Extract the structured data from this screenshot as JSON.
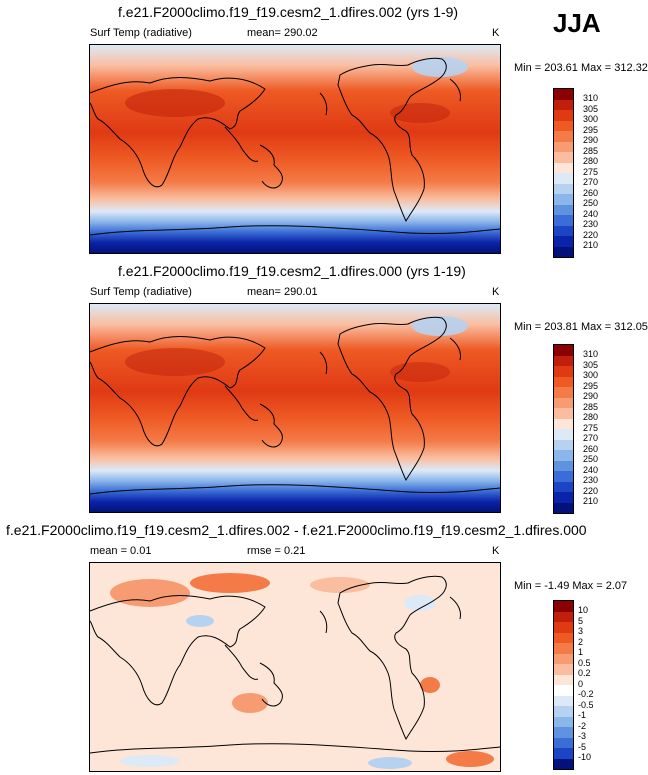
{
  "season": "JJA",
  "panels": [
    {
      "title": "f.e21.F2000climo.f19_f19.cesm2_1.dfires.002 (yrs 1-9)",
      "left_label": "Surf Temp (radiative)",
      "center_label": "mean= 290.02",
      "units": "K",
      "minmax": "Min = 203.61 Max = 312.32",
      "levels": [
        "310",
        "305",
        "300",
        "295",
        "290",
        "285",
        "280",
        "275",
        "270",
        "260",
        "250",
        "240",
        "230",
        "220",
        "210"
      ],
      "colors": [
        "#8b0000",
        "#c0200b",
        "#e03a14",
        "#ee5a24",
        "#f47b48",
        "#f79b73",
        "#fabd9f",
        "#fde6d8",
        "#dce9f7",
        "#b6d2f0",
        "#8bb6ea",
        "#5f93e0",
        "#3a6dd5",
        "#1b45c4",
        "#0b23a8",
        "#03127a"
      ]
    },
    {
      "title": "f.e21.F2000climo.f19_f19.cesm2_1.dfires.000 (yrs 1-19)",
      "left_label": "Surf Temp (radiative)",
      "center_label": "mean= 290.01",
      "units": "K",
      "minmax": "Min = 203.81 Max = 312.05",
      "levels": [
        "310",
        "305",
        "300",
        "295",
        "290",
        "285",
        "280",
        "275",
        "270",
        "260",
        "250",
        "240",
        "230",
        "220",
        "210"
      ],
      "colors": [
        "#8b0000",
        "#c0200b",
        "#e03a14",
        "#ee5a24",
        "#f47b48",
        "#f79b73",
        "#fabd9f",
        "#fde6d8",
        "#dce9f7",
        "#b6d2f0",
        "#8bb6ea",
        "#5f93e0",
        "#3a6dd5",
        "#1b45c4",
        "#0b23a8",
        "#03127a"
      ]
    },
    {
      "title": "f.e21.F2000climo.f19_f19.cesm2_1.dfires.002 - f.e21.F2000climo.f19_f19.cesm2_1.dfires.000",
      "left_label": "mean =  0.01",
      "center_label": "rmse =  0.21",
      "units": "K",
      "minmax": "Min =  -1.49 Max =  2.07",
      "levels": [
        "10",
        "5",
        "3",
        "2",
        "1",
        "0.5",
        "0.2",
        "0",
        "-0.2",
        "-0.5",
        "-1",
        "-2",
        "-3",
        "-5",
        "-10"
      ],
      "colors": [
        "#8b0000",
        "#c0200b",
        "#e03a14",
        "#ee5a24",
        "#f47b48",
        "#f79b73",
        "#fabd9f",
        "#fde6d8",
        "#ffffff",
        "#dce9f7",
        "#b6d2f0",
        "#8bb6ea",
        "#5f93e0",
        "#3a6dd5",
        "#1b45c4",
        "#03127a"
      ]
    }
  ],
  "chart_data": [
    {
      "type": "heatmap",
      "title": "f.e21.F2000climo.f19_f19.cesm2_1.dfires.002 (yrs 1-9)",
      "variable": "Surf Temp (radiative)",
      "units": "K",
      "mean": 290.02,
      "min": 203.61,
      "max": 312.32,
      "colorbar_levels": [
        310,
        305,
        300,
        295,
        290,
        285,
        280,
        275,
        270,
        260,
        250,
        240,
        230,
        220,
        210
      ]
    },
    {
      "type": "heatmap",
      "title": "f.e21.F2000climo.f19_f19.cesm2_1.dfires.000 (yrs 1-19)",
      "variable": "Surf Temp (radiative)",
      "units": "K",
      "mean": 290.01,
      "min": 203.81,
      "max": 312.05,
      "colorbar_levels": [
        310,
        305,
        300,
        295,
        290,
        285,
        280,
        275,
        270,
        260,
        250,
        240,
        230,
        220,
        210
      ]
    },
    {
      "type": "heatmap",
      "title": "f.e21.F2000climo.f19_f19.cesm2_1.dfires.002 - f.e21.F2000climo.f19_f19.cesm2_1.dfires.000",
      "units": "K",
      "mean": 0.01,
      "rmse": 0.21,
      "min": -1.49,
      "max": 2.07,
      "colorbar_levels": [
        10,
        5,
        3,
        2,
        1,
        0.5,
        0.2,
        0,
        -0.2,
        -0.5,
        -1,
        -2,
        -3,
        -5,
        -10
      ]
    }
  ]
}
